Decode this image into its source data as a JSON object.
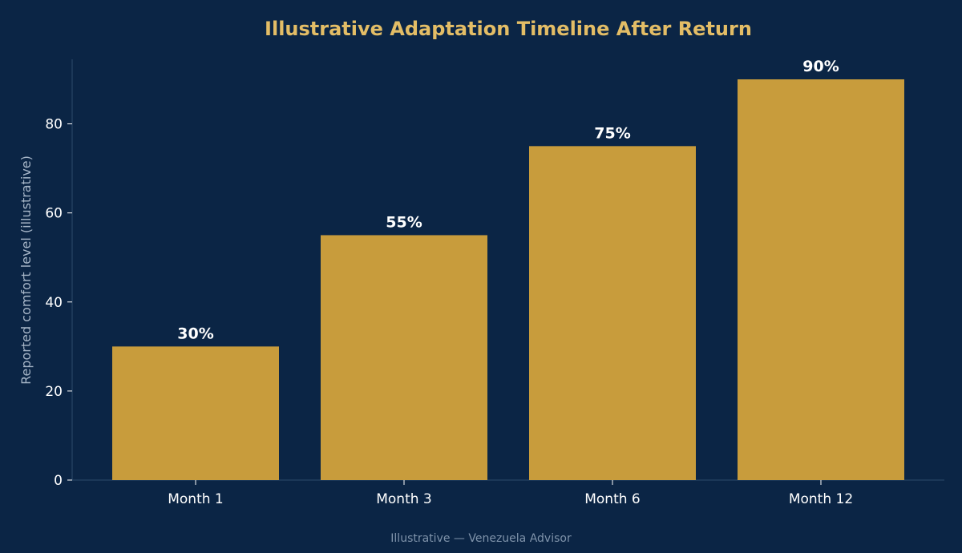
{
  "colors": {
    "background": "#0b2545",
    "bar": "#c89c3c",
    "title": "#e3bd66",
    "axis": "#2e4a6b",
    "tick_text": "#ffffff",
    "ylabel_text": "#a7b6c8",
    "footer_text": "#7f93aa"
  },
  "chart_data": {
    "type": "bar",
    "title": "Illustrative Adaptation Timeline After Return",
    "xlabel": "",
    "ylabel": "Reported comfort level (illustrative)",
    "categories": [
      "Month 1",
      "Month 3",
      "Month 6",
      "Month 12"
    ],
    "values": [
      30,
      55,
      75,
      90
    ],
    "data_labels": [
      "30%",
      "55%",
      "75%",
      "90%"
    ],
    "yticks": [
      0,
      20,
      40,
      60,
      80
    ],
    "ylim": [
      0,
      94.5
    ],
    "grid": false,
    "legend": "none"
  },
  "footer": {
    "text": "Illustrative — Venezuela Advisor"
  }
}
